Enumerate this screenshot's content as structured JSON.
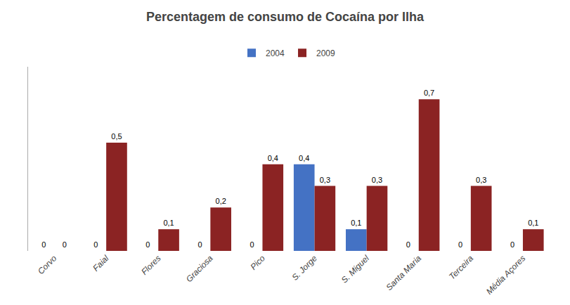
{
  "chart_data": {
    "type": "bar",
    "title": "Percentagem de consumo de Cocaína por Ilha",
    "categories": [
      "Corvo",
      "Faial",
      "Flores",
      "Graciosa",
      "Pico",
      "S. Jorge",
      "S. Miguel",
      "Santa Maria",
      "Terceira",
      "Média Açores"
    ],
    "series": [
      {
        "name": "2004",
        "color": "#4472C4",
        "values": [
          0,
          0,
          0,
          0,
          0,
          0.4,
          0.1,
          0,
          0,
          0.0
        ],
        "value_labels": [
          "0",
          "0",
          "0",
          "0",
          "0",
          "0,4",
          "0,1",
          "0",
          "0",
          "0"
        ]
      },
      {
        "name": "2009",
        "color": "#8B2323",
        "values": [
          0,
          0.5,
          0.1,
          0.2,
          0.4,
          0.3,
          0.3,
          0.7,
          0.3,
          0.1
        ],
        "value_labels": [
          "0",
          "0,5",
          "0,1",
          "0,2",
          "0,4",
          "0,3",
          "0,3",
          "0,7",
          "0,3",
          "0,1"
        ]
      }
    ],
    "ylim": [
      0,
      0.85
    ],
    "yticks": [],
    "grid": false,
    "legend": "top",
    "data_labels": true,
    "tick_labels": "x"
  }
}
